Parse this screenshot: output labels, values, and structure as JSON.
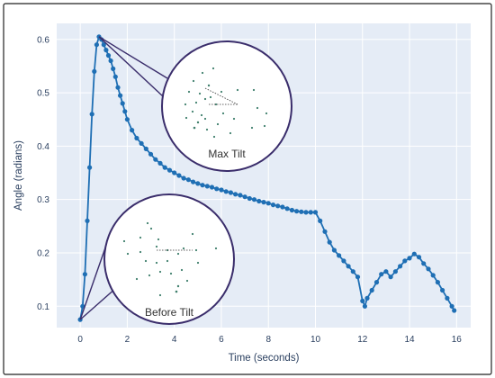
{
  "chart_data": {
    "type": "line",
    "xlabel": "Time (seconds)",
    "ylabel": "Angle (radians)",
    "xlim": [
      -1,
      16.6
    ],
    "ylim": [
      0.06,
      0.63
    ],
    "x_ticks": [
      0,
      2,
      4,
      6,
      8,
      10,
      12,
      14,
      16
    ],
    "y_ticks": [
      0.1,
      0.2,
      0.3,
      0.4,
      0.5,
      0.6
    ],
    "grid": true,
    "legend": "none",
    "color": "#1f6fb4",
    "series": [
      {
        "x": [
          0,
          0.1,
          0.2,
          0.3,
          0.4,
          0.5,
          0.6,
          0.7,
          0.8,
          0.9,
          1.0,
          1.1,
          1.2,
          1.3,
          1.4,
          1.5,
          1.6,
          1.7,
          1.8,
          1.9,
          2.0,
          2.2,
          2.4,
          2.6,
          2.8,
          3.0,
          3.2,
          3.4,
          3.6,
          3.8,
          4.0,
          4.2,
          4.4,
          4.6,
          4.8,
          5.0,
          5.2,
          5.4,
          5.6,
          5.8,
          6.0,
          6.2,
          6.4,
          6.6,
          6.8,
          7.0,
          7.2,
          7.4,
          7.6,
          7.8,
          8.0,
          8.2,
          8.4,
          8.6,
          8.8,
          9.0,
          9.2,
          9.4,
          9.6,
          9.8,
          10.0,
          10.2,
          10.4,
          10.6,
          10.8,
          11.0,
          11.2,
          11.4,
          11.6,
          11.8,
          12.0,
          12.1,
          12.2,
          12.4,
          12.6,
          12.8,
          13.0,
          13.2,
          13.4,
          13.6,
          13.8,
          14.0,
          14.2,
          14.4,
          14.6,
          14.8,
          15.0,
          15.2,
          15.4,
          15.6,
          15.8,
          15.9
        ],
        "y": [
          0.075,
          0.1,
          0.16,
          0.26,
          0.36,
          0.46,
          0.54,
          0.59,
          0.605,
          0.6,
          0.59,
          0.58,
          0.57,
          0.56,
          0.545,
          0.53,
          0.51,
          0.495,
          0.48,
          0.465,
          0.45,
          0.43,
          0.415,
          0.405,
          0.395,
          0.385,
          0.375,
          0.368,
          0.36,
          0.355,
          0.35,
          0.345,
          0.34,
          0.337,
          0.333,
          0.33,
          0.327,
          0.325,
          0.323,
          0.32,
          0.318,
          0.315,
          0.313,
          0.31,
          0.308,
          0.305,
          0.302,
          0.3,
          0.297,
          0.295,
          0.293,
          0.29,
          0.288,
          0.286,
          0.283,
          0.28,
          0.278,
          0.277,
          0.276,
          0.276,
          0.276,
          0.26,
          0.24,
          0.22,
          0.205,
          0.195,
          0.185,
          0.175,
          0.165,
          0.155,
          0.11,
          0.1,
          0.115,
          0.13,
          0.145,
          0.16,
          0.165,
          0.155,
          0.165,
          0.175,
          0.185,
          0.19,
          0.198,
          0.192,
          0.18,
          0.17,
          0.158,
          0.145,
          0.13,
          0.115,
          0.1,
          0.092
        ]
      }
    ],
    "annotations": [
      {
        "label": "Max Tilt",
        "x": 0.8,
        "y": 0.605
      },
      {
        "label": "Before Tilt",
        "x": 0.0,
        "y": 0.075
      }
    ]
  }
}
